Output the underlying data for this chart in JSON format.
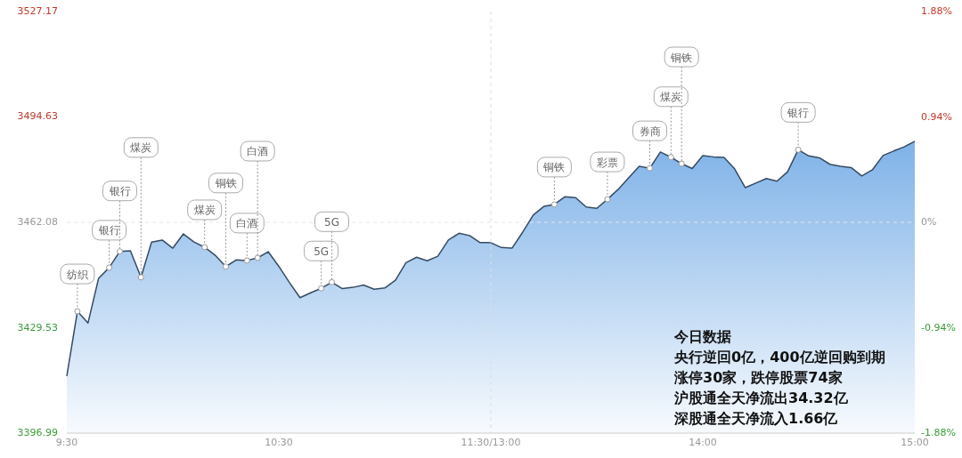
{
  "chart_data": {
    "type": "area",
    "categories": [
      "9:30",
      null,
      null,
      null,
      null,
      null,
      null,
      null,
      null,
      null,
      null,
      null,
      null,
      null,
      null,
      null,
      null,
      null,
      null,
      null,
      "10:30",
      null,
      null,
      null,
      null,
      null,
      null,
      null,
      null,
      null,
      null,
      null,
      null,
      null,
      null,
      null,
      null,
      null,
      null,
      null,
      "11:30/13:00",
      null,
      null,
      null,
      null,
      null,
      null,
      null,
      null,
      null,
      null,
      null,
      null,
      null,
      null,
      null,
      null,
      null,
      null,
      null,
      "14:00",
      null,
      null,
      null,
      null,
      null,
      null,
      null,
      null,
      null,
      null,
      null,
      null,
      null,
      null,
      null,
      null,
      null,
      null,
      null,
      "15:00"
    ],
    "series": [
      {
        "color": "#7fb2e8",
        "values": [
          3414.6,
          3434.6,
          3431.0,
          3444.8,
          3448.1,
          3453.1,
          3453.3,
          3445.1,
          3456.0,
          3456.6,
          3454.1,
          3458.5,
          3456.0,
          3454.4,
          3451.9,
          3448.4,
          3450.5,
          3450.3,
          3451.1,
          3453.0,
          3448.5,
          3443.5,
          3438.8,
          3440.3,
          3441.7,
          3443.6,
          3441.6,
          3442.0,
          3442.7,
          3441.4,
          3441.8,
          3444.2,
          3449.6,
          3451.3,
          3450.2,
          3451.6,
          3456.6,
          3458.7,
          3458.0,
          3455.8,
          3455.8,
          3454.3,
          3454.1,
          3459.0,
          3464.3,
          3467.0,
          3467.6,
          3470.0,
          3469.7,
          3466.8,
          3466.4,
          3469.2,
          3472.2,
          3475.8,
          3479.4,
          3478.8,
          3483.8,
          3482.2,
          3480.2,
          3478.7,
          3482.7,
          3482.3,
          3482.1,
          3478.6,
          3472.8,
          3474.2,
          3475.6,
          3474.8,
          3477.7,
          3484.5,
          3482.6,
          3482.0,
          3480.0,
          3479.4,
          3479.0,
          3476.4,
          3478.3,
          3482.7,
          3484.1,
          3485.4,
          3487.1
        ]
      }
    ],
    "ylim": [
      3396.99,
      3527.17
    ],
    "yticks": [
      3396.99,
      3429.53,
      3462.08,
      3494.63,
      3527.17
    ],
    "y2lim": [
      -1.88,
      1.88
    ],
    "y2ticks": [
      {
        "value": -1.88,
        "label": "-1.88%"
      },
      {
        "value": -0.94,
        "label": "-0.94%"
      },
      {
        "value": 0,
        "label": "0%"
      },
      {
        "value": 0.94,
        "label": "0.94%"
      },
      {
        "value": 1.88,
        "label": "1.88%"
      }
    ],
    "ref_lines": [
      {
        "axis": "x",
        "value": "11:30/13:00",
        "color": "#dddddd",
        "line_style": "dashed"
      },
      {
        "axis": "y",
        "value": 3462.08,
        "color": "#e6e6e6",
        "line_style": "dashed"
      }
    ],
    "annotations": [
      {
        "text": "纺织",
        "y": 3434.6
      },
      {
        "text": "银行",
        "y": 3448.1
      },
      {
        "text": "银行",
        "y": 3453.1
      },
      {
        "text": "煤炭",
        "y": 3445.1
      },
      {
        "text": "煤炭",
        "y": 3454.4
      },
      {
        "text": "铜铁",
        "y": 3448.4
      },
      {
        "text": "白酒",
        "y": 3450.3
      },
      {
        "text": "白酒",
        "y": 3451.1
      },
      {
        "text": "5G",
        "y": 3441.7
      },
      {
        "text": "5G",
        "y": 3443.6
      },
      {
        "text": "铜铁",
        "y": 3467.6
      },
      {
        "text": "彩票",
        "y": 3469.2
      },
      {
        "text": "券商",
        "y": 3478.8
      },
      {
        "text": "煤炭",
        "y": 3482.2
      },
      {
        "text": "铜铁",
        "y": 3480.2
      },
      {
        "text": "银行",
        "y": 3484.5
      },
      "今日数据",
      "央行逆回0亿，400亿逆回购到期",
      "涨停30家，跌停股票74家",
      "沪股通全天净流出34.32亿",
      "深股通全天净流入1.66亿"
    ]
  }
}
